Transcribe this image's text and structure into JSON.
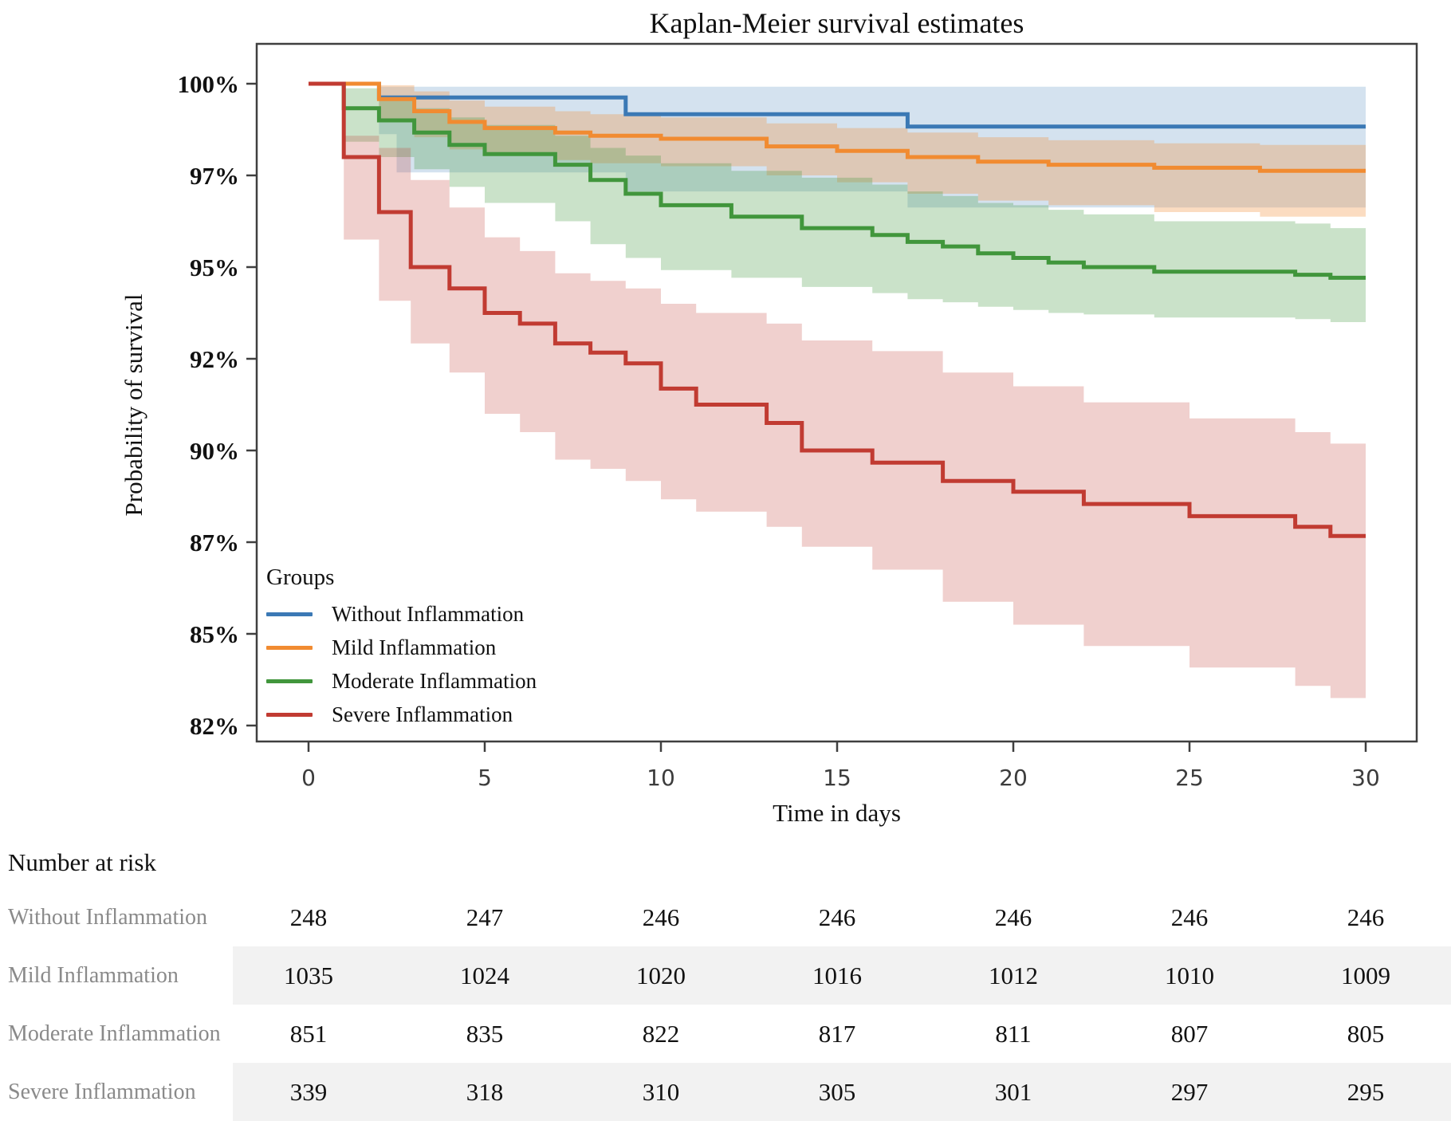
{
  "title": "Kaplan-Meier survival estimates",
  "y_axis": {
    "label": "Probability of survival",
    "tick_labels": [
      "100%",
      "97%",
      "95%",
      "92%",
      "90%",
      "87%",
      "85%",
      "82%"
    ],
    "tick_values": [
      100,
      97,
      95,
      92,
      90,
      87,
      85,
      82
    ]
  },
  "x_axis": {
    "label": "Time in days",
    "tick_values": [
      0,
      5,
      10,
      15,
      20,
      25,
      30
    ]
  },
  "legend": {
    "title": "Groups",
    "items": [
      {
        "label": "Without Inflammation",
        "color": "#3b79b5"
      },
      {
        "label": "Mild Inflammation",
        "color": "#f18b31"
      },
      {
        "label": "Moderate Inflammation",
        "color": "#41963c"
      },
      {
        "label": "Severe Inflammation",
        "color": "#c13b32"
      }
    ]
  },
  "chart_data": {
    "type": "line",
    "subtype": "kaplan-meier-step",
    "title": "Kaplan-Meier survival estimates",
    "xlabel": "Time in days",
    "ylabel": "Probability of survival",
    "xlim": [
      0,
      30
    ],
    "y_ticks_percent": [
      100,
      97,
      95,
      92,
      90,
      87,
      85,
      82
    ],
    "grid": false,
    "legend_position": "inside-left-bottom",
    "series": [
      {
        "name": "Without Inflammation",
        "color": "#3b79b5",
        "band_opacity": 0.22,
        "steps": [
          [
            0,
            100
          ],
          [
            2,
            99.55
          ],
          [
            9,
            99.0
          ],
          [
            17,
            98.6
          ],
          [
            30,
            98.6
          ]
        ],
        "ci_upper": [
          [
            2,
            99.9
          ],
          [
            30,
            99.9
          ]
        ],
        "ci_lower": [
          [
            2,
            98.35
          ],
          [
            2.5,
            97.1
          ],
          [
            9,
            96.65
          ],
          [
            17,
            96.3
          ],
          [
            30,
            96.3
          ]
        ]
      },
      {
        "name": "Mild Inflammation",
        "color": "#f18b31",
        "band_opacity": 0.3,
        "steps": [
          [
            0,
            100
          ],
          [
            2,
            99.5
          ],
          [
            3,
            99.1
          ],
          [
            4,
            98.75
          ],
          [
            5,
            98.55
          ],
          [
            7,
            98.4
          ],
          [
            8,
            98.3
          ],
          [
            10,
            98.2
          ],
          [
            13,
            97.95
          ],
          [
            15,
            97.8
          ],
          [
            17,
            97.6
          ],
          [
            19,
            97.45
          ],
          [
            21,
            97.35
          ],
          [
            24,
            97.25
          ],
          [
            27,
            97.15
          ],
          [
            30,
            97.15
          ]
        ],
        "ci_upper": [
          [
            2,
            99.95
          ],
          [
            3,
            99.75
          ],
          [
            4,
            99.45
          ],
          [
            5,
            99.25
          ],
          [
            7,
            99.1
          ],
          [
            8,
            99.0
          ],
          [
            10,
            98.9
          ],
          [
            13,
            98.7
          ],
          [
            15,
            98.55
          ],
          [
            17,
            98.4
          ],
          [
            19,
            98.25
          ],
          [
            21,
            98.15
          ],
          [
            24,
            98.05
          ],
          [
            27,
            98.0
          ],
          [
            30,
            98.0
          ]
        ],
        "ci_lower": [
          [
            2,
            98.75
          ],
          [
            3,
            98.25
          ],
          [
            4,
            97.85
          ],
          [
            5,
            97.65
          ],
          [
            7,
            97.5
          ],
          [
            8,
            97.4
          ],
          [
            10,
            97.3
          ],
          [
            13,
            97.0
          ],
          [
            15,
            96.85
          ],
          [
            17,
            96.6
          ],
          [
            19,
            96.45
          ],
          [
            21,
            96.35
          ],
          [
            24,
            96.2
          ],
          [
            27,
            96.1
          ],
          [
            30,
            96.1
          ]
        ]
      },
      {
        "name": "Moderate Inflammation",
        "color": "#41963c",
        "band_opacity": 0.28,
        "steps": [
          [
            0,
            100
          ],
          [
            1,
            99.2
          ],
          [
            2,
            98.8
          ],
          [
            3,
            98.4
          ],
          [
            4,
            98.0
          ],
          [
            5,
            97.7
          ],
          [
            7,
            97.35
          ],
          [
            8,
            96.9
          ],
          [
            9,
            96.6
          ],
          [
            10,
            96.35
          ],
          [
            12,
            96.1
          ],
          [
            14,
            95.85
          ],
          [
            16,
            95.7
          ],
          [
            17,
            95.55
          ],
          [
            18,
            95.45
          ],
          [
            19,
            95.3
          ],
          [
            20,
            95.2
          ],
          [
            21,
            95.1
          ],
          [
            22,
            95.0
          ],
          [
            24,
            94.85
          ],
          [
            28,
            94.75
          ],
          [
            29,
            94.65
          ],
          [
            30,
            94.65
          ]
        ],
        "ci_upper": [
          [
            1,
            99.85
          ],
          [
            2,
            99.55
          ],
          [
            3,
            99.2
          ],
          [
            4,
            98.9
          ],
          [
            5,
            98.65
          ],
          [
            7,
            98.3
          ],
          [
            8,
            97.9
          ],
          [
            9,
            97.65
          ],
          [
            10,
            97.4
          ],
          [
            12,
            97.15
          ],
          [
            14,
            96.95
          ],
          [
            16,
            96.8
          ],
          [
            17,
            96.65
          ],
          [
            18,
            96.55
          ],
          [
            19,
            96.4
          ],
          [
            20,
            96.35
          ],
          [
            21,
            96.25
          ],
          [
            22,
            96.15
          ],
          [
            24,
            96.0
          ],
          [
            28,
            95.95
          ],
          [
            29,
            95.85
          ],
          [
            30,
            95.85
          ]
        ],
        "ci_lower": [
          [
            1,
            98.1
          ],
          [
            2,
            97.6
          ],
          [
            3,
            97.2
          ],
          [
            4,
            96.75
          ],
          [
            5,
            96.4
          ],
          [
            7,
            96.0
          ],
          [
            8,
            95.5
          ],
          [
            9,
            95.2
          ],
          [
            10,
            94.9
          ],
          [
            12,
            94.65
          ],
          [
            14,
            94.35
          ],
          [
            16,
            94.15
          ],
          [
            17,
            93.95
          ],
          [
            18,
            93.85
          ],
          [
            19,
            93.7
          ],
          [
            20,
            93.6
          ],
          [
            21,
            93.5
          ],
          [
            22,
            93.45
          ],
          [
            24,
            93.35
          ],
          [
            28,
            93.3
          ],
          [
            29,
            93.2
          ],
          [
            30,
            93.2
          ]
        ]
      },
      {
        "name": "Severe Inflammation",
        "color": "#c13b32",
        "band_opacity": 0.24,
        "steps": [
          [
            0,
            100
          ],
          [
            1,
            97.6
          ],
          [
            2,
            96.2
          ],
          [
            2.9,
            95.0
          ],
          [
            4,
            94.3
          ],
          [
            5,
            93.5
          ],
          [
            6,
            93.15
          ],
          [
            7,
            92.5
          ],
          [
            8,
            92.2
          ],
          [
            9,
            91.9
          ],
          [
            10,
            91.35
          ],
          [
            11,
            91.0
          ],
          [
            13,
            90.6
          ],
          [
            14,
            90.0
          ],
          [
            16,
            89.6
          ],
          [
            18,
            89.0
          ],
          [
            20,
            88.65
          ],
          [
            22,
            88.25
          ],
          [
            25,
            87.85
          ],
          [
            28,
            87.5
          ],
          [
            29,
            87.2
          ],
          [
            30,
            87.2
          ]
        ],
        "ci_upper": [
          [
            1,
            98.3
          ],
          [
            2,
            97.9
          ],
          [
            2.9,
            96.9
          ],
          [
            4,
            96.3
          ],
          [
            5,
            95.65
          ],
          [
            6,
            95.35
          ],
          [
            7,
            94.8
          ],
          [
            8,
            94.55
          ],
          [
            9,
            94.3
          ],
          [
            10,
            93.8
          ],
          [
            11,
            93.5
          ],
          [
            13,
            93.15
          ],
          [
            14,
            92.6
          ],
          [
            16,
            92.25
          ],
          [
            18,
            91.7
          ],
          [
            20,
            91.4
          ],
          [
            22,
            91.05
          ],
          [
            25,
            90.7
          ],
          [
            28,
            90.4
          ],
          [
            29,
            90.15
          ],
          [
            30,
            90.15
          ]
        ],
        "ci_lower": [
          [
            1,
            95.6
          ],
          [
            2,
            93.9
          ],
          [
            2.9,
            92.5
          ],
          [
            4,
            91.7
          ],
          [
            5,
            90.8
          ],
          [
            6,
            90.4
          ],
          [
            7,
            89.7
          ],
          [
            8,
            89.4
          ],
          [
            9,
            89.0
          ],
          [
            10,
            88.4
          ],
          [
            11,
            88.0
          ],
          [
            13,
            87.5
          ],
          [
            14,
            86.9
          ],
          [
            16,
            86.4
          ],
          [
            18,
            85.7
          ],
          [
            20,
            85.2
          ],
          [
            22,
            84.6
          ],
          [
            25,
            83.9
          ],
          [
            28,
            83.3
          ],
          [
            29,
            82.9
          ],
          [
            30,
            82.9
          ]
        ]
      }
    ]
  },
  "risk_table": {
    "header": "Number at risk",
    "time_points": [
      0,
      5,
      10,
      15,
      20,
      25,
      30
    ],
    "rows": [
      {
        "label": "Without Inflammation",
        "striped": false,
        "values": [
          248,
          247,
          246,
          246,
          246,
          246,
          246
        ]
      },
      {
        "label": "Mild Inflammation",
        "striped": true,
        "values": [
          1035,
          1024,
          1020,
          1016,
          1012,
          1010,
          1009
        ]
      },
      {
        "label": "Moderate Inflammation",
        "striped": false,
        "values": [
          851,
          835,
          822,
          817,
          811,
          807,
          805
        ]
      },
      {
        "label": "Severe Inflammation",
        "striped": true,
        "values": [
          339,
          318,
          310,
          305,
          301,
          297,
          295
        ]
      }
    ]
  },
  "style": {
    "frame_color": "#3f3f3f",
    "x_tick_label_color": "#3c3c3c",
    "row_label_color": "#8a8a8a",
    "stripe_color": "#f2f2f2"
  }
}
